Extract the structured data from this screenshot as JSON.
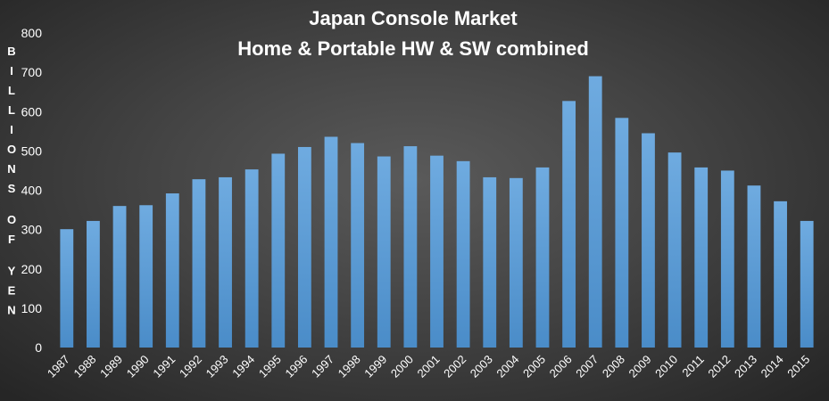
{
  "chart_data": {
    "type": "bar",
    "title_lines": [
      "Japan Console Market",
      "Home & Portable HW & SW combined"
    ],
    "ylabel_words": [
      "BILLIONS",
      "OF",
      "YEN"
    ],
    "categories": [
      "1987",
      "1988",
      "1989",
      "1990",
      "1991",
      "1992",
      "1993",
      "1994",
      "1995",
      "1996",
      "1997",
      "1998",
      "1999",
      "2000",
      "2001",
      "2002",
      "2003",
      "2004",
      "2005",
      "2006",
      "2007",
      "2008",
      "2009",
      "2010",
      "2011",
      "2012",
      "2013",
      "2014",
      "2015"
    ],
    "values": [
      301,
      322,
      360,
      362,
      392,
      428,
      433,
      453,
      493,
      510,
      536,
      520,
      486,
      512,
      488,
      474,
      433,
      431,
      458,
      627,
      690,
      584,
      545,
      496,
      458,
      450,
      412,
      372,
      322
    ],
    "yticks": [
      0,
      100,
      200,
      300,
      400,
      500,
      600,
      700,
      800
    ],
    "ylim": [
      0,
      800
    ],
    "grid": false,
    "legend": "none",
    "bar_color": "#5b9bd5"
  }
}
